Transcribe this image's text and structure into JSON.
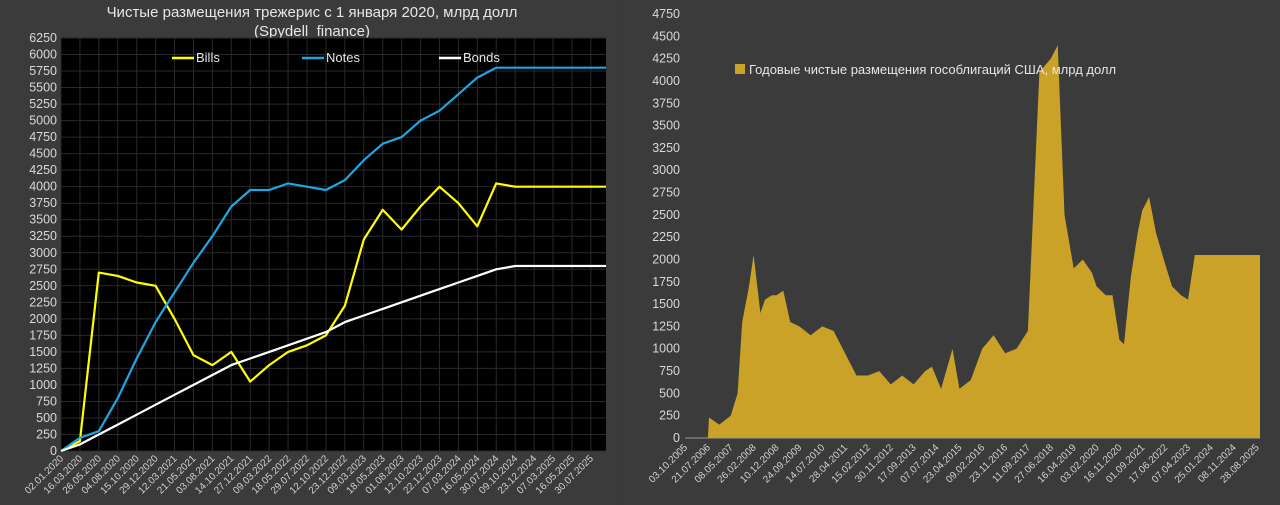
{
  "chart_data": [
    {
      "type": "line",
      "title": "Чистые размещения трежерис с 1 января 2020, млрд долл",
      "subtitle": "(Spydell_finance)",
      "legend_position": "top",
      "ylim": [
        0,
        6250
      ],
      "ytick_step": 250,
      "grid": true,
      "xticks": [
        "02.01.2020",
        "16.03.2020",
        "26.05.2020",
        "04.08.2020",
        "15.10.2020",
        "29.12.2020",
        "12.03.2021",
        "21.05.2021",
        "03.08.2021",
        "14.10.2021",
        "27.12.2021",
        "09.03.2022",
        "18.05.2022",
        "29.07.2022",
        "12.10.2022",
        "23.12.2022",
        "09.03.2023",
        "18.05.2023",
        "01.08.2023",
        "12.10.2023",
        "22.12.2023",
        "07.03.2024",
        "16.05.2024",
        "30.07.2024",
        "09.10.2024",
        "23.12.2024",
        "07.03.2025",
        "16.05.2025",
        "30.07.2025"
      ],
      "x": [
        0,
        1,
        2,
        3,
        4,
        5,
        6,
        7,
        8,
        9,
        10,
        11,
        12,
        13,
        14,
        15,
        16,
        17,
        18,
        19,
        20,
        21,
        22,
        23,
        24,
        25,
        26,
        27,
        28,
        28.8
      ],
      "series": [
        {
          "name": "Bills",
          "color": "#ffff00",
          "values": [
            0,
            150,
            2700,
            2650,
            2550,
            2500,
            2000,
            1450,
            1300,
            1500,
            1050,
            1300,
            1500,
            1600,
            1750,
            2200,
            3200,
            3650,
            3350,
            3700,
            4000,
            3750,
            3400,
            4050,
            4000,
            4000,
            4000,
            4000,
            4000,
            4000
          ]
        },
        {
          "name": "Notes",
          "color": "#1fa6e0",
          "values": [
            0,
            200,
            300,
            800,
            1400,
            1950,
            2400,
            2850,
            3250,
            3700,
            3950,
            3950,
            4050,
            4000,
            3950,
            4100,
            4400,
            4650,
            4750,
            5000,
            5150,
            5400,
            5650,
            5800,
            5800,
            5800,
            5800,
            5800,
            5800,
            5800
          ]
        },
        {
          "name": "Bonds",
          "color": "#ffffff",
          "values": [
            0,
            100,
            250,
            400,
            550,
            700,
            850,
            1000,
            1150,
            1300,
            1400,
            1500,
            1600,
            1700,
            1800,
            1950,
            2050,
            2150,
            2250,
            2350,
            2450,
            2550,
            2650,
            2750,
            2800,
            2800,
            2800,
            2800,
            2800,
            2800
          ]
        }
      ]
    },
    {
      "type": "area",
      "legend": "Годовые чистые размещения гособлигаций США, млрд долл",
      "legend_position": "top-left",
      "color": "#c9a227",
      "ylim": [
        0,
        4750
      ],
      "ytick_step": 250,
      "grid": false,
      "xticks": [
        "03.10.2005",
        "21.07.2006",
        "08.05.2007",
        "26.02.2008",
        "10.12.2008",
        "24.09.2009",
        "14.07.2010",
        "28.04.2011",
        "15.02.2012",
        "30.11.2012",
        "17.09.2013",
        "07.07.2014",
        "23.04.2015",
        "09.02.2016",
        "23.11.2016",
        "11.09.2017",
        "27.06.2018",
        "16.04.2019",
        "03.02.2020",
        "16.11.2020",
        "01.09.2021",
        "17.06.2022",
        "07.04.2023",
        "25.01.2024",
        "08.11.2024",
        "28.08.2025"
      ],
      "x": [
        0,
        1,
        1.05,
        1.5,
        2,
        2.3,
        2.5,
        2.8,
        3,
        3.3,
        3.5,
        3.8,
        4,
        4.3,
        4.6,
        5,
        5.5,
        6,
        6.5,
        7,
        7.5,
        8,
        8.5,
        9,
        9.5,
        10,
        10.5,
        10.8,
        11.2,
        11.7,
        12,
        12.5,
        13,
        13.5,
        14,
        14.5,
        15,
        15.5,
        16,
        16.3,
        16.6,
        17,
        17.4,
        17.8,
        18,
        18.4,
        18.7,
        19,
        19.2,
        19.5,
        19.8,
        20,
        20.3,
        20.6,
        21,
        21.3,
        21.7,
        22,
        22.3,
        22.6,
        23,
        23.4,
        23.7,
        24,
        24.3,
        24.6,
        24.8,
        25,
        25.15
      ],
      "values": [
        0,
        0,
        230,
        150,
        250,
        500,
        1300,
        1700,
        2050,
        1400,
        1550,
        1600,
        1600,
        1650,
        1300,
        1250,
        1150,
        1250,
        1200,
        950,
        700,
        700,
        750,
        600,
        700,
        600,
        750,
        800,
        550,
        1000,
        550,
        650,
        1000,
        1150,
        950,
        1000,
        1200,
        4100,
        4250,
        4400,
        2500,
        1900,
        2000,
        1850,
        1700,
        1600,
        1600,
        1100,
        1050,
        1800,
        2300,
        2550,
        2700,
        2300,
        1950,
        1700,
        1600,
        1550,
        2050,
        2050,
        2050,
        2050,
        2050,
        2050,
        2050,
        2050,
        2050,
        2050,
        2050
      ]
    }
  ]
}
